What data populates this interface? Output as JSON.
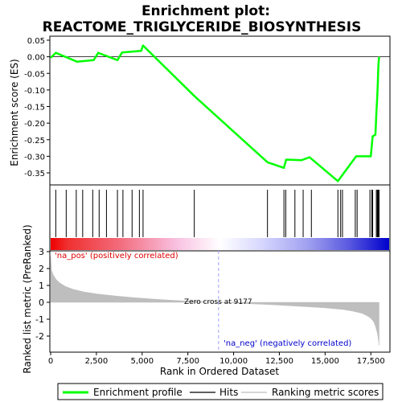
{
  "chart_data": [
    {
      "type": "line",
      "title": "Enrichment plot:",
      "subtitle": "REACTOME_TRIGLYCERIDE_BIOSYNTHESIS",
      "ylabel": "Enrichment score (ES)",
      "ylim": [
        -0.4,
        0.05
      ],
      "y_ticks": [
        0.05,
        0.0,
        -0.05,
        -0.1,
        -0.15,
        -0.2,
        -0.25,
        -0.3,
        -0.35
      ],
      "y_tick_labels": [
        "0.05",
        "0.00",
        "-0.05",
        "-0.10",
        "-0.15",
        "-0.20",
        "-0.25",
        "-0.30",
        "-0.35"
      ],
      "xlim": [
        0,
        18500
      ],
      "series": [
        {
          "name": "Enrichment profile",
          "color": "#00ff00",
          "x": [
            0,
            280,
            1450,
            2350,
            2600,
            3650,
            3900,
            4950,
            5050,
            7850,
            11850,
            12750,
            12870,
            13700,
            14150,
            15700,
            16700,
            17500,
            17600,
            17750,
            17780,
            17800,
            17830,
            17860,
            17880,
            17900,
            17920,
            17950
          ],
          "y": [
            -0.003,
            0.012,
            -0.015,
            -0.01,
            0.012,
            -0.01,
            0.013,
            0.018,
            0.034,
            -0.118,
            -0.318,
            -0.335,
            -0.31,
            -0.312,
            -0.303,
            -0.375,
            -0.3,
            -0.3,
            -0.24,
            -0.235,
            -0.2,
            -0.17,
            -0.14,
            -0.11,
            -0.08,
            -0.05,
            -0.02,
            0.0
          ]
        }
      ]
    },
    {
      "type": "scatter",
      "name": "Hits",
      "xlim": [
        0,
        18500
      ],
      "x": [
        280,
        850,
        1400,
        1750,
        2300,
        2650,
        3050,
        3650,
        3950,
        4450,
        4850,
        5050,
        7850,
        11850,
        12750,
        12850,
        13350,
        13800,
        14250,
        15700,
        15850,
        15950,
        16650,
        16750,
        17450,
        17550,
        17600,
        17800,
        17850,
        17880,
        17920,
        17950
      ]
    },
    {
      "type": "area",
      "ylabel": "Ranked list metric (PreRanked)",
      "xlabel": "Rank in Ordered Dataset",
      "xlim": [
        0,
        18500
      ],
      "ylim": [
        -2.7,
        3.0
      ],
      "y_ticks": [
        3,
        2,
        1,
        0,
        -1,
        -2
      ],
      "x_ticks": [
        0,
        2500,
        5000,
        7500,
        10000,
        12500,
        15000,
        17500
      ],
      "x_tick_labels": [
        "0",
        "2,500",
        "5,000",
        "7,500",
        "10,000",
        "12,500",
        "15,000",
        "17,500"
      ],
      "series": [
        {
          "name": "Ranking metric scores",
          "color": "#bebebe",
          "x": [
            0,
            50,
            150,
            300,
            500,
            800,
            1200,
            1800,
            2500,
            3500,
            4500,
            5500,
            6500,
            7500,
            8500,
            9177,
            10000,
            11000,
            12000,
            13000,
            14000,
            15000,
            16000,
            16500,
            17000,
            17300,
            17500,
            17650,
            17750,
            17850,
            17900,
            17950
          ],
          "y": [
            2.7,
            1.9,
            1.6,
            1.35,
            1.15,
            0.95,
            0.78,
            0.62,
            0.5,
            0.38,
            0.28,
            0.2,
            0.13,
            0.07,
            0.03,
            0.0,
            -0.04,
            -0.09,
            -0.14,
            -0.2,
            -0.26,
            -0.33,
            -0.43,
            -0.52,
            -0.65,
            -0.8,
            -0.95,
            -1.15,
            -1.4,
            -1.8,
            -2.1,
            -2.55
          ]
        }
      ],
      "annotations": {
        "pos": "'na_pos' (positively correlated)",
        "neg": "'na_neg' (negatively correlated)",
        "zero": "Zero cross at 9177",
        "zero_x": 9177
      }
    }
  ],
  "legend": [
    {
      "label": "Enrichment profile",
      "color": "#00ff00"
    },
    {
      "label": "Hits",
      "color": "#000000"
    },
    {
      "label": "Ranking metric scores",
      "color": "#bebebe"
    }
  ],
  "colors": {
    "profile": "#00ff00",
    "hits": "#000000",
    "metric": "#bebebe",
    "pos_label": "#dd0000",
    "neg_label": "#0000cc",
    "zero_line": "#a0a0ff"
  }
}
